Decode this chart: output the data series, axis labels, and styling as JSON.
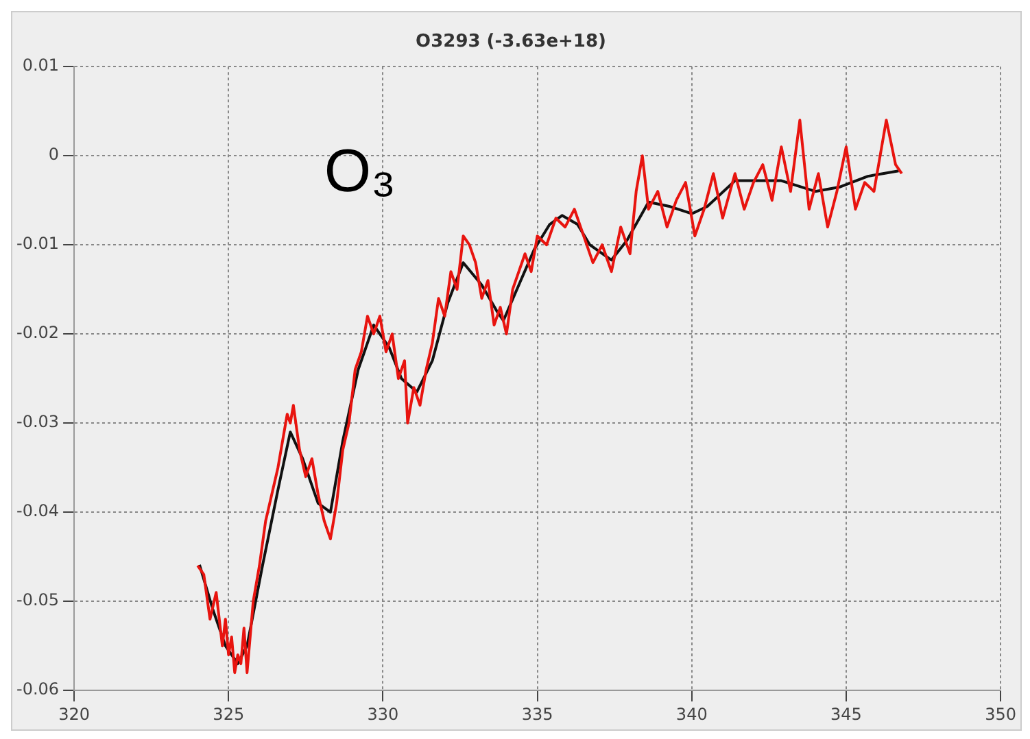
{
  "chart_data": {
    "type": "line",
    "title": "O3293 (-3.63e+18)",
    "annotations": [
      "O₃"
    ],
    "xlim": [
      320,
      350
    ],
    "xticks": [
      320,
      325,
      330,
      335,
      340,
      345,
      350
    ],
    "ylim": [
      -0.06,
      0.01
    ],
    "yticks": [
      -0.06,
      -0.05,
      -0.04,
      -0.03,
      -0.02,
      -0.01,
      0,
      0.01
    ],
    "grid": true,
    "legend": false,
    "marker": "none",
    "line_style": "solid",
    "series": [
      {
        "color": "#e8140f",
        "x": [
          324.0,
          324.2,
          324.4,
          324.6,
          324.8,
          324.9,
          325.0,
          325.1,
          325.2,
          325.3,
          325.4,
          325.5,
          325.6,
          325.7,
          325.8,
          326.0,
          326.2,
          326.4,
          326.6,
          326.8,
          326.9,
          327.0,
          327.1,
          327.3,
          327.5,
          327.7,
          327.9,
          328.1,
          328.3,
          328.5,
          328.7,
          328.9,
          329.1,
          329.3,
          329.5,
          329.7,
          329.9,
          330.1,
          330.3,
          330.5,
          330.7,
          330.8,
          331.0,
          331.2,
          331.4,
          331.6,
          331.8,
          332.0,
          332.2,
          332.4,
          332.6,
          332.8,
          333.0,
          333.2,
          333.4,
          333.6,
          333.8,
          334.0,
          334.2,
          334.4,
          334.6,
          334.8,
          335.0,
          335.3,
          335.6,
          335.9,
          336.2,
          336.5,
          336.8,
          337.1,
          337.4,
          337.7,
          338.0,
          338.2,
          338.4,
          338.6,
          338.9,
          339.2,
          339.5,
          339.8,
          340.1,
          340.4,
          340.7,
          341.0,
          341.4,
          341.7,
          342.0,
          342.3,
          342.6,
          342.9,
          343.2,
          343.5,
          343.8,
          344.1,
          344.4,
          344.7,
          345.0,
          345.3,
          345.6,
          345.9,
          346.3,
          346.6,
          346.8
        ],
        "values": [
          -0.046,
          -0.047,
          -0.052,
          -0.049,
          -0.055,
          -0.052,
          -0.056,
          -0.054,
          -0.058,
          -0.056,
          -0.057,
          -0.053,
          -0.058,
          -0.054,
          -0.05,
          -0.046,
          -0.041,
          -0.038,
          -0.035,
          -0.031,
          -0.029,
          -0.03,
          -0.028,
          -0.033,
          -0.036,
          -0.034,
          -0.038,
          -0.041,
          -0.043,
          -0.039,
          -0.033,
          -0.03,
          -0.024,
          -0.022,
          -0.018,
          -0.02,
          -0.018,
          -0.022,
          -0.02,
          -0.025,
          -0.023,
          -0.03,
          -0.026,
          -0.028,
          -0.024,
          -0.021,
          -0.016,
          -0.018,
          -0.013,
          -0.015,
          -0.009,
          -0.01,
          -0.012,
          -0.016,
          -0.014,
          -0.019,
          -0.017,
          -0.02,
          -0.015,
          -0.013,
          -0.011,
          -0.013,
          -0.009,
          -0.01,
          -0.007,
          -0.008,
          -0.006,
          -0.009,
          -0.012,
          -0.01,
          -0.013,
          -0.008,
          -0.011,
          -0.004,
          0.0,
          -0.006,
          -0.004,
          -0.008,
          -0.005,
          -0.003,
          -0.009,
          -0.006,
          -0.002,
          -0.007,
          -0.002,
          -0.006,
          -0.003,
          -0.001,
          -0.005,
          0.001,
          -0.004,
          0.004,
          -0.006,
          -0.002,
          -0.008,
          -0.004,
          0.001,
          -0.006,
          -0.003,
          -0.004,
          0.004,
          -0.001,
          -0.002
        ]
      },
      {
        "color": "#111111",
        "x": [
          324.06,
          324.5,
          324.9,
          325.3,
          325.6,
          326.1,
          326.6,
          327.0,
          327.4,
          327.9,
          328.3,
          328.7,
          329.2,
          329.7,
          330.2,
          330.6,
          331.1,
          331.6,
          332.1,
          332.6,
          333.2,
          333.7,
          333.9,
          334.4,
          334.9,
          335.4,
          335.8,
          336.3,
          336.7,
          337.4,
          337.9,
          338.6,
          339.3,
          340.0,
          340.5,
          341.4,
          342.9,
          344.0,
          344.8,
          345.7,
          346.7
        ],
        "values": [
          -0.0459,
          -0.051,
          -0.055,
          -0.057,
          -0.055,
          -0.046,
          -0.0375,
          -0.031,
          -0.034,
          -0.039,
          -0.04,
          -0.032,
          -0.024,
          -0.019,
          -0.0215,
          -0.025,
          -0.0265,
          -0.023,
          -0.0165,
          -0.012,
          -0.0145,
          -0.0175,
          -0.0185,
          -0.0145,
          -0.0105,
          -0.0077,
          -0.0067,
          -0.0077,
          -0.01,
          -0.0117,
          -0.0095,
          -0.0052,
          -0.0057,
          -0.0065,
          -0.0057,
          -0.0028,
          -0.0028,
          -0.004,
          -0.0035,
          -0.0023,
          -0.0017
        ]
      }
    ]
  }
}
